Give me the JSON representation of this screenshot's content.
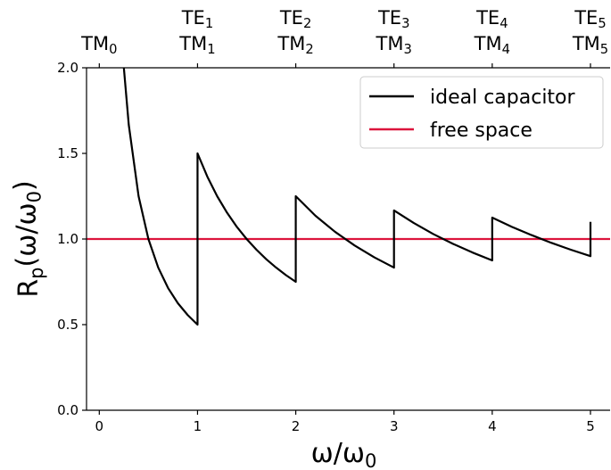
{
  "chart_data": {
    "type": "line",
    "xlabel": {
      "base": "ω/ω",
      "sub": "0"
    },
    "ylabel": {
      "base": "R",
      "sub": "p",
      "rest": "(ω/ω",
      "sub2": "0",
      "close": ")"
    },
    "xlim": [
      -0.13,
      5.2
    ],
    "ylim": [
      0,
      2.0
    ],
    "xticks": [
      0,
      1,
      2,
      3,
      4,
      5
    ],
    "xtick_labels": [
      "0",
      "1",
      "2",
      "3",
      "4",
      "5"
    ],
    "yticks": [
      0.0,
      0.5,
      1.0,
      1.5,
      2.0
    ],
    "ytick_labels": [
      "0.0",
      "0.5",
      "1.0",
      "1.5",
      "2.0"
    ],
    "top_axis": [
      {
        "x": 0,
        "lines": [
          {
            "base": "TM",
            "sub": "0"
          }
        ]
      },
      {
        "x": 1,
        "lines": [
          {
            "base": "TE",
            "sub": "1"
          },
          {
            "base": "TM",
            "sub": "1"
          }
        ]
      },
      {
        "x": 2,
        "lines": [
          {
            "base": "TE",
            "sub": "2"
          },
          {
            "base": "TM",
            "sub": "2"
          }
        ]
      },
      {
        "x": 3,
        "lines": [
          {
            "base": "TE",
            "sub": "3"
          },
          {
            "base": "TM",
            "sub": "3"
          }
        ]
      },
      {
        "x": 4,
        "lines": [
          {
            "base": "TE",
            "sub": "4"
          },
          {
            "base": "TM",
            "sub": "4"
          }
        ]
      },
      {
        "x": 5,
        "lines": [
          {
            "base": "TE",
            "sub": "5"
          },
          {
            "base": "TM",
            "sub": "5"
          }
        ]
      }
    ],
    "series": [
      {
        "name": "ideal capacitor",
        "color": "#000000",
        "x": [
          0.25,
          0.3,
          0.4,
          0.5,
          0.6,
          0.7,
          0.8,
          0.9,
          1.0,
          1.0,
          1.1,
          1.2,
          1.3,
          1.4,
          1.5,
          1.6,
          1.7,
          1.8,
          1.9,
          2.0,
          2.0,
          2.2,
          2.4,
          2.6,
          2.8,
          3.0,
          3.0,
          3.2,
          3.4,
          3.6,
          3.8,
          4.0,
          4.0,
          4.2,
          4.4,
          4.6,
          4.8,
          5.0,
          5.0
        ],
        "y": [
          2.0,
          1.667,
          1.25,
          1.0,
          0.833,
          0.714,
          0.625,
          0.556,
          0.5,
          1.5,
          1.364,
          1.25,
          1.154,
          1.071,
          1.0,
          0.9375,
          0.882,
          0.833,
          0.789,
          0.75,
          1.25,
          1.136,
          1.042,
          0.962,
          0.893,
          0.833,
          1.167,
          1.094,
          1.029,
          0.972,
          0.921,
          0.875,
          1.125,
          1.071,
          1.023,
          0.978,
          0.9375,
          0.9,
          1.1
        ]
      },
      {
        "name": "free space",
        "color": "#dc143c",
        "x": [
          -0.13,
          5.2
        ],
        "y": [
          1.0,
          1.0
        ]
      }
    ],
    "legend_position": "top-right",
    "grid": false
  }
}
